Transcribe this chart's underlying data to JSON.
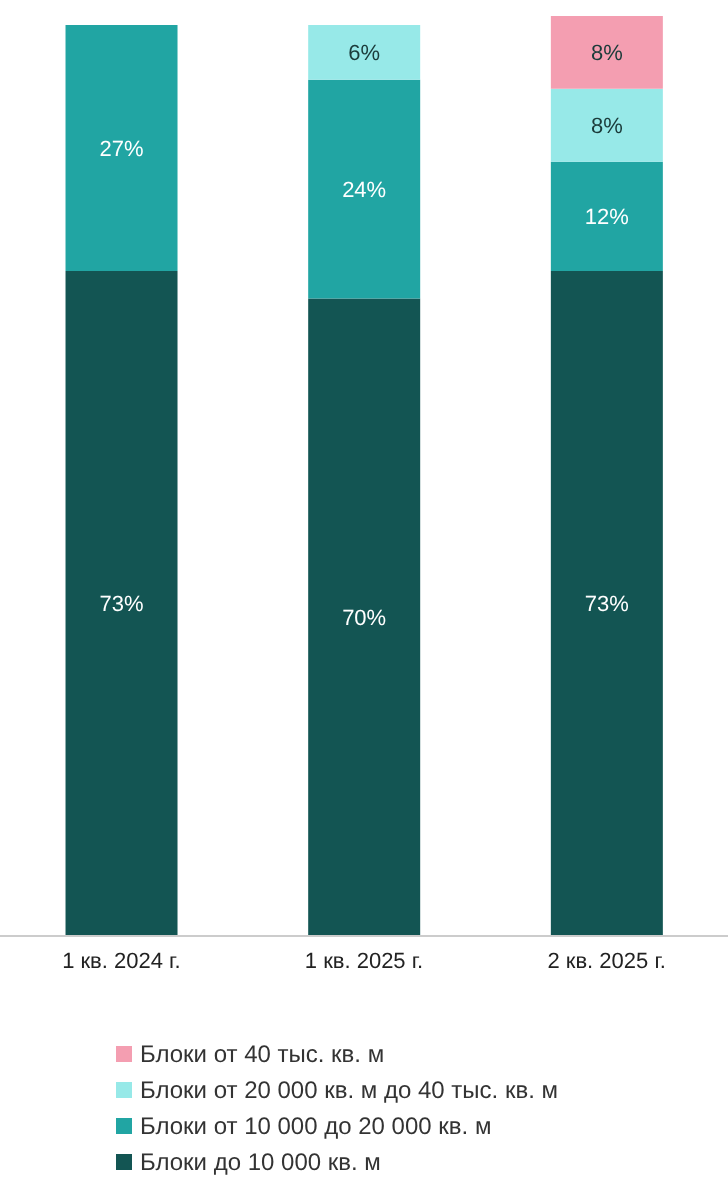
{
  "chart_data": {
    "type": "bar",
    "stacked": true,
    "legend": "bottom",
    "categories": [
      "1 кв. 2024 г.",
      "1 кв. 2025 г.",
      "2 кв. 2025 г."
    ],
    "series": [
      {
        "name": "Блоки до 10 000 кв. м",
        "color": "#135553",
        "values": [
          73,
          70,
          73
        ],
        "value_labels": [
          "73%",
          "70%",
          "73%"
        ]
      },
      {
        "name": "Блоки от 10 000 до 20 000 кв. м",
        "color": "#21a5a3",
        "values": [
          27,
          24,
          12
        ],
        "value_labels": [
          "27%",
          "24%",
          "12%"
        ]
      },
      {
        "name": "Блоки от 20 000 кв. м до 40 тыс. кв. м",
        "color": "#97e9e8",
        "values": [
          null,
          6,
          8
        ],
        "value_labels": [
          null,
          "6%",
          "8%"
        ]
      },
      {
        "name": "Блоки от 40 тыс. кв. м",
        "color": "#f49eb1",
        "values": [
          null,
          null,
          8
        ],
        "value_labels": [
          null,
          null,
          "8%"
        ]
      }
    ]
  }
}
